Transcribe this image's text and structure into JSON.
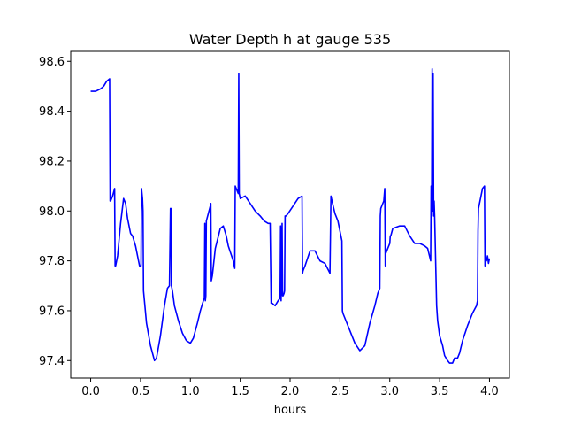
{
  "chart_data": {
    "type": "line",
    "title": "Water Depth h at gauge 535",
    "xlabel": "hours",
    "ylabel": "",
    "xlim": [
      -0.2,
      4.2
    ],
    "ylim": [
      97.33,
      98.64
    ],
    "xticks": [
      0.0,
      0.5,
      1.0,
      1.5,
      2.0,
      2.5,
      3.0,
      3.5,
      4.0
    ],
    "xtick_labels": [
      "0.0",
      "0.5",
      "1.0",
      "1.5",
      "2.0",
      "2.5",
      "3.0",
      "3.5",
      "4.0"
    ],
    "yticks": [
      97.4,
      97.6,
      97.8,
      98.0,
      98.2,
      98.4,
      98.6
    ],
    "ytick_labels": [
      "97.4",
      "97.6",
      "97.8",
      "98.0",
      "98.2",
      "98.4",
      "98.6"
    ],
    "grid": false,
    "legend": "none",
    "series": [
      {
        "color": "#0000ff",
        "x": [
          0.0,
          0.05,
          0.1,
          0.13,
          0.16,
          0.19,
          0.195,
          0.2,
          0.22,
          0.24,
          0.245,
          0.25,
          0.27,
          0.3,
          0.33,
          0.35,
          0.37,
          0.4,
          0.42,
          0.45,
          0.49,
          0.505,
          0.51,
          0.52,
          0.525,
          0.53,
          0.56,
          0.6,
          0.64,
          0.66,
          0.7,
          0.74,
          0.77,
          0.79,
          0.8,
          0.805,
          0.81,
          0.815,
          0.82,
          0.84,
          0.88,
          0.92,
          0.96,
          1.0,
          1.03,
          1.07,
          1.1,
          1.13,
          1.14,
          1.145,
          1.15,
          1.155,
          1.16,
          1.2,
          1.205,
          1.21,
          1.22,
          1.25,
          1.3,
          1.33,
          1.36,
          1.38,
          1.43,
          1.44,
          1.445,
          1.45,
          1.47,
          1.48,
          1.485,
          1.49,
          1.5,
          1.55,
          1.6,
          1.65,
          1.7,
          1.74,
          1.78,
          1.8,
          1.81,
          1.82,
          1.85,
          1.88,
          1.9,
          1.905,
          1.91,
          1.92,
          1.925,
          1.93,
          1.94,
          1.945,
          1.95,
          1.96,
          1.98,
          2.03,
          2.08,
          2.12,
          2.125,
          2.13,
          2.15,
          2.2,
          2.25,
          2.3,
          2.35,
          2.4,
          2.41,
          2.415,
          2.45,
          2.48,
          2.52,
          2.525,
          2.53,
          2.6,
          2.65,
          2.7,
          2.75,
          2.8,
          2.85,
          2.88,
          2.9,
          2.905,
          2.91,
          2.94,
          2.95,
          2.955,
          2.96,
          2.98,
          3.0,
          3.005,
          3.01,
          3.03,
          3.1,
          3.15,
          3.2,
          3.25,
          3.3,
          3.35,
          3.38,
          3.41,
          3.415,
          3.42,
          3.425,
          3.43,
          3.435,
          3.44,
          3.445,
          3.45,
          3.47,
          3.48,
          3.5,
          3.53,
          3.55,
          3.58,
          3.6,
          3.63,
          3.65,
          3.68,
          3.7,
          3.73,
          3.78,
          3.83,
          3.87,
          3.88,
          3.885,
          3.89,
          3.93,
          3.95,
          3.955,
          3.96,
          3.97,
          3.98,
          3.99,
          4.0
        ],
        "values": [
          98.48,
          98.48,
          98.49,
          98.5,
          98.52,
          98.53,
          98.04,
          98.04,
          98.06,
          98.09,
          97.78,
          97.78,
          97.82,
          97.95,
          98.05,
          98.03,
          97.97,
          97.91,
          97.9,
          97.86,
          97.78,
          97.78,
          98.09,
          98.05,
          98.0,
          97.68,
          97.55,
          97.46,
          97.4,
          97.41,
          97.5,
          97.62,
          97.69,
          97.7,
          98.01,
          98.01,
          97.7,
          97.69,
          97.68,
          97.62,
          97.56,
          97.51,
          97.48,
          97.47,
          97.49,
          97.55,
          97.6,
          97.64,
          97.65,
          97.95,
          97.64,
          97.66,
          97.96,
          98.02,
          98.03,
          97.72,
          97.74,
          97.85,
          97.93,
          97.94,
          97.9,
          97.86,
          97.8,
          97.78,
          97.77,
          98.1,
          98.08,
          98.07,
          98.55,
          98.07,
          98.05,
          98.06,
          98.03,
          98.0,
          97.98,
          97.96,
          97.95,
          97.95,
          97.63,
          97.63,
          97.62,
          97.64,
          97.65,
          97.94,
          97.64,
          97.95,
          97.66,
          97.66,
          97.67,
          97.68,
          97.98,
          97.98,
          97.99,
          98.02,
          98.05,
          98.06,
          97.75,
          97.76,
          97.78,
          97.84,
          97.84,
          97.8,
          97.79,
          97.75,
          98.06,
          98.05,
          97.99,
          97.96,
          97.88,
          97.6,
          97.59,
          97.52,
          97.47,
          97.44,
          97.46,
          97.55,
          97.62,
          97.67,
          97.69,
          97.98,
          98.01,
          98.04,
          98.09,
          97.78,
          97.83,
          97.85,
          97.87,
          97.9,
          97.9,
          97.93,
          97.94,
          97.94,
          97.9,
          97.87,
          97.87,
          97.86,
          97.85,
          97.8,
          98.1,
          97.97,
          98.57,
          98.0,
          98.55,
          97.98,
          98.04,
          97.98,
          97.62,
          97.56,
          97.5,
          97.46,
          97.42,
          97.4,
          97.39,
          97.39,
          97.41,
          97.41,
          97.43,
          97.48,
          97.54,
          97.59,
          97.62,
          97.64,
          97.92,
          98.01,
          98.09,
          98.1,
          97.78,
          97.8,
          97.8,
          97.82,
          97.79,
          97.81
        ]
      }
    ]
  }
}
